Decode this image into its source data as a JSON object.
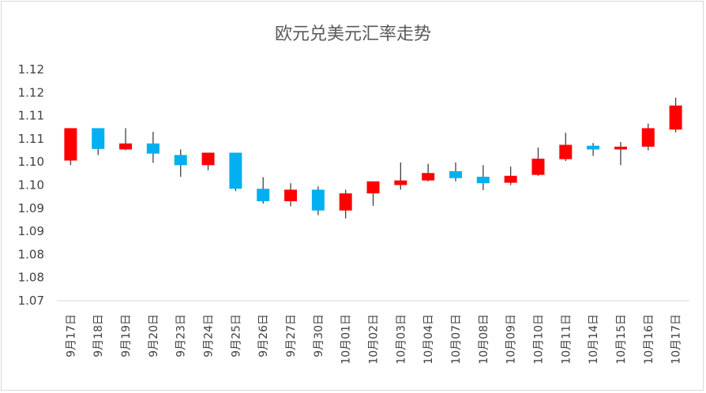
{
  "chart_data": {
    "type": "candlestick",
    "title": "欧元兑美元汇率走势",
    "xlabel": "",
    "ylabel": "",
    "y_tick_labels": [
      "1.12",
      "1.12",
      "1.11",
      "1.11",
      "1.10",
      "1.10",
      "1.09",
      "1.09",
      "1.08",
      "1.08",
      "1.07"
    ],
    "ylim": [
      1.07,
      1.12
    ],
    "grid": false,
    "legend": "none",
    "colors": {
      "up": "#ff0000",
      "down": "#00b0f0",
      "wick": "#404040"
    },
    "candles": [
      {
        "date": "9月17日",
        "open": 1.1003,
        "close": 1.1073,
        "high": 1.1073,
        "low": 1.0993
      },
      {
        "date": "9月18日",
        "open": 1.1073,
        "close": 1.1028,
        "high": 1.1073,
        "low": 1.1015
      },
      {
        "date": "9月19日",
        "open": 1.1027,
        "close": 1.104,
        "high": 1.1073,
        "low": 1.1025
      },
      {
        "date": "9月20日",
        "open": 1.104,
        "close": 1.1018,
        "high": 1.1065,
        "low": 1.0998
      },
      {
        "date": "9月23日",
        "open": 1.1015,
        "close": 1.0993,
        "high": 1.1027,
        "low": 1.0968
      },
      {
        "date": "9月24日",
        "open": 1.0993,
        "close": 1.102,
        "high": 1.102,
        "low": 1.0982
      },
      {
        "date": "9月25日",
        "open": 1.102,
        "close": 1.0942,
        "high": 1.102,
        "low": 1.0937
      },
      {
        "date": "9月26日",
        "open": 1.0942,
        "close": 1.0915,
        "high": 1.0967,
        "low": 1.091
      },
      {
        "date": "9月27日",
        "open": 1.0915,
        "close": 1.094,
        "high": 1.0954,
        "low": 1.0904
      },
      {
        "date": "9月30日",
        "open": 1.094,
        "close": 1.0895,
        "high": 1.0947,
        "low": 1.0885
      },
      {
        "date": "10月01日",
        "open": 1.0895,
        "close": 1.0932,
        "high": 1.094,
        "low": 1.0878
      },
      {
        "date": "10月02日",
        "open": 1.0932,
        "close": 1.0958,
        "high": 1.0958,
        "low": 1.0905
      },
      {
        "date": "10月03日",
        "open": 1.095,
        "close": 1.096,
        "high": 1.0999,
        "low": 1.094
      },
      {
        "date": "10月04日",
        "open": 1.096,
        "close": 1.0976,
        "high": 1.0996,
        "low": 1.0958
      },
      {
        "date": "10月07日",
        "open": 1.098,
        "close": 1.0965,
        "high": 1.0999,
        "low": 1.0958
      },
      {
        "date": "10月08日",
        "open": 1.0968,
        "close": 1.0954,
        "high": 1.0993,
        "low": 1.0939
      },
      {
        "date": "10月09日",
        "open": 1.0955,
        "close": 1.097,
        "high": 1.099,
        "low": 1.095
      },
      {
        "date": "10月10日",
        "open": 1.0972,
        "close": 1.1007,
        "high": 1.1031,
        "low": 1.097
      },
      {
        "date": "10月11日",
        "open": 1.1006,
        "close": 1.1037,
        "high": 1.1063,
        "low": 1.1002
      },
      {
        "date": "10月14日",
        "open": 1.1035,
        "close": 1.1027,
        "high": 1.1041,
        "low": 1.1013
      },
      {
        "date": "10月15日",
        "open": 1.1027,
        "close": 1.1033,
        "high": 1.1043,
        "low": 1.0993
      },
      {
        "date": "10月16日",
        "open": 1.1033,
        "close": 1.1073,
        "high": 1.1083,
        "low": 1.1025
      },
      {
        "date": "10月17日",
        "open": 1.107,
        "close": 1.1122,
        "high": 1.1139,
        "low": 1.1064
      }
    ]
  }
}
